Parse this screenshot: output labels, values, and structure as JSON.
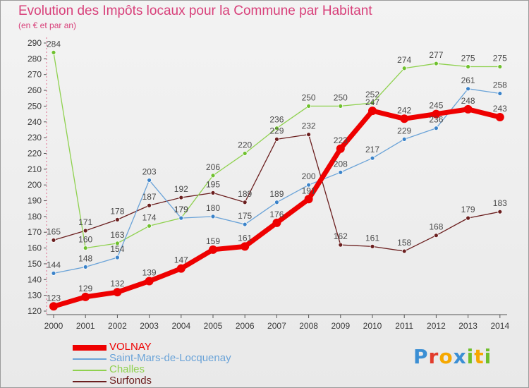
{
  "title": "Evolution des Impôts locaux pour la Commune par Habitant",
  "subtitle": "(en € et par an)",
  "logo": {
    "text": "Proxiti",
    "letters": [
      {
        "ch": "P",
        "color": "#3b8fd4"
      },
      {
        "ch": "r",
        "color": "#e23c2c"
      },
      {
        "ch": "o",
        "color": "#f6a800"
      },
      {
        "ch": "x",
        "color": "#3b8fd4"
      },
      {
        "ch": "i",
        "color": "#6fbf2b"
      },
      {
        "ch": "t",
        "color": "#f6a800"
      },
      {
        "ch": "i",
        "color": "#6fbf2b"
      }
    ]
  },
  "chart_data": {
    "type": "line",
    "categories": [
      "2000",
      "2001",
      "2002",
      "2003",
      "2004",
      "2005",
      "2006",
      "2007",
      "2008",
      "2009",
      "2010",
      "2011",
      "2012",
      "2013",
      "2014"
    ],
    "ylim": [
      120,
      290
    ],
    "yticks": [
      120,
      130,
      140,
      150,
      160,
      170,
      180,
      190,
      200,
      210,
      220,
      230,
      240,
      250,
      260,
      270,
      280,
      290
    ],
    "grid": false,
    "legend": "bottom-left",
    "series": [
      {
        "name": "Surfonds",
        "color": "#6b1f1f",
        "point_color": "#6b1f1f",
        "width": 1.3,
        "marker": 3,
        "values": [
          165,
          171,
          178,
          187,
          192,
          195,
          189,
          229,
          232,
          162,
          161,
          158,
          168,
          179,
          183
        ]
      },
      {
        "name": "Challes",
        "color": "#8fd14f",
        "point_color": "#6fc02e",
        "width": 1.3,
        "marker": 3,
        "values": [
          284,
          160,
          163,
          174,
          179,
          206,
          220,
          236,
          250,
          250,
          252,
          274,
          277,
          275,
          275
        ]
      },
      {
        "name": "Saint-Mars-de-Locquenay",
        "color": "#6aa3d8",
        "point_color": "#3b83c9",
        "width": 1.3,
        "marker": 3,
        "values": [
          144,
          148,
          154,
          203,
          179,
          180,
          175,
          189,
          200,
          208,
          217,
          229,
          236,
          261,
          258
        ]
      },
      {
        "name": "VOLNAY",
        "color": "#ee0000",
        "point_color": "#ee0000",
        "width": 7,
        "marker": 6,
        "values": [
          123,
          129,
          132,
          139,
          147,
          159,
          161,
          176,
          191,
          223,
          247,
          242,
          245,
          248,
          243
        ]
      }
    ],
    "labels": {
      "Surfonds": [
        "165",
        "171",
        "178",
        "187",
        "192",
        "195",
        "189",
        "229",
        "232",
        "162",
        "161",
        "158",
        "168",
        "179",
        "183"
      ],
      "Challes": [
        "284",
        "160",
        "163",
        "174",
        "179",
        "206",
        "220",
        "236",
        "250",
        "250",
        "252",
        "274",
        "277",
        "275",
        "275"
      ],
      "Saint-Mars-de-Locquenay": [
        "144",
        "148",
        "154",
        "203",
        "179",
        "180",
        "175",
        "189",
        "200",
        "208",
        "217",
        "229",
        "236",
        "261",
        "258"
      ],
      "VOLNAY": [
        "123",
        "129",
        "132",
        "139",
        "147",
        "159",
        "161",
        "176",
        "191",
        "223",
        "247",
        "242",
        "245",
        "248",
        "243"
      ]
    },
    "label_note_visible": "191"
  },
  "legend_items": [
    {
      "label": "VOLNAY",
      "color": "#ee0000",
      "thickness": 8
    },
    {
      "label": "Saint-Mars-de-Locquenay",
      "color": "#6aa3d8",
      "thickness": 2
    },
    {
      "label": "Challes",
      "color": "#8fd14f",
      "thickness": 2
    },
    {
      "label": "Surfonds",
      "color": "#6b1f1f",
      "thickness": 2
    }
  ]
}
